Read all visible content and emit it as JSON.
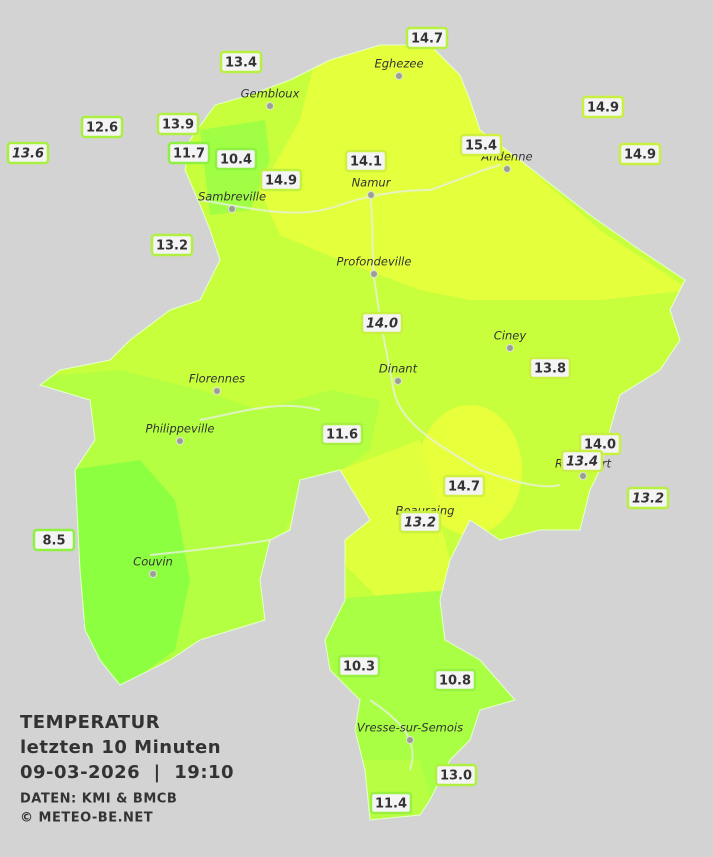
{
  "map": {
    "title": [
      "TEMPERATUR",
      "letzten 10 Minuten",
      "09-03-2026  |  19:10"
    ],
    "credits": [
      "DATEN: KMI & BMCB",
      "© METEO-BE.NET"
    ],
    "towns": [
      "Eghezee",
      "Gembloux",
      "Andenne",
      "Namur",
      "Sambreville",
      "Profondeville",
      "Ciney",
      "Dinant",
      "Florennes",
      "Philippeville",
      "Couvin",
      "Vresse-sur-Semois",
      "Beauraing",
      "Rochefort"
    ],
    "stations": [
      "14.7",
      "13.4",
      "14.9",
      "12.6",
      "13.9",
      "13.6",
      "11.7",
      "10.4",
      "15.4",
      "14.9",
      "14.1",
      "14.9",
      "13.2",
      "14.0",
      "13.8",
      "11.6",
      "14.0",
      "13.4",
      "14.7",
      "13.2",
      "13.2",
      "8.5",
      "10.3",
      "10.8",
      "13.0",
      "11.4"
    ]
  }
}
